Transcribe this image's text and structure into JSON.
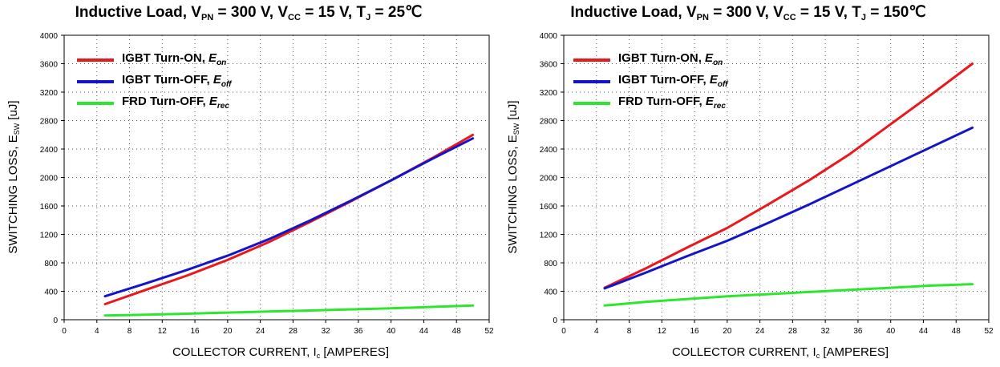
{
  "colors": {
    "eon": "#e8181c",
    "eoff": "#1414c8",
    "erec": "#2ee62e",
    "grid": "#555555"
  },
  "chart_data": [
    {
      "type": "line",
      "title": {
        "prefix": "Inductive Load, V",
        "vpn_sub": "PN",
        "vcc": " = 300 V, V",
        "vcc_sub": "CC",
        "tj": " = 15 V, T",
        "tj_sub": "J",
        "suffix": " = 25℃"
      },
      "ylabel": {
        "main": "SWITCHING LOSS, E",
        "sub": "SW",
        "unit": " [uJ]"
      },
      "xlabel": {
        "main": "COLLECTOR CURRENT, I",
        "sub": "c",
        "unit": " [AMPERES]"
      },
      "xlim": [
        0,
        52
      ],
      "ylim": [
        0,
        4000
      ],
      "xticks": [
        "0",
        "4",
        "8",
        "12",
        "16",
        "20",
        "24",
        "28",
        "32",
        "36",
        "40",
        "44",
        "48",
        "52"
      ],
      "yticks": [
        "0",
        "400",
        "800",
        "1200",
        "1600",
        "2000",
        "2400",
        "2800",
        "3200",
        "3600",
        "4000"
      ],
      "grid": true,
      "legend_position": "top-left",
      "legend": [
        {
          "text": "IGBT Turn-ON, ",
          "sym": "E",
          "sub": "on",
          "color_key": "eon"
        },
        {
          "text": "IGBT Turn-OFF, ",
          "sym": "E",
          "sub": "off",
          "color_key": "eoff"
        },
        {
          "text": "FRD Turn-OFF, ",
          "sym": "E",
          "sub": "rec",
          "color_key": "erec"
        }
      ],
      "series": [
        {
          "key": "eon",
          "x": [
            5,
            10,
            15,
            20,
            25,
            30,
            35,
            40,
            45,
            50
          ],
          "y": [
            220,
            420,
            620,
            840,
            1090,
            1370,
            1660,
            1960,
            2270,
            2600
          ]
        },
        {
          "key": "eoff",
          "x": [
            5,
            10,
            15,
            20,
            25,
            30,
            35,
            40,
            45,
            50
          ],
          "y": [
            330,
            510,
            700,
            900,
            1130,
            1390,
            1670,
            1960,
            2260,
            2550
          ]
        },
        {
          "key": "erec",
          "x": [
            5,
            10,
            15,
            20,
            25,
            30,
            35,
            40,
            45,
            50
          ],
          "y": [
            60,
            70,
            85,
            100,
            115,
            130,
            145,
            160,
            180,
            200
          ]
        }
      ]
    },
    {
      "type": "line",
      "title": {
        "prefix": "Inductive Load, V",
        "vpn_sub": "PN",
        "vcc": " = 300 V, V",
        "vcc_sub": "CC",
        "tj": " = 15 V, T",
        "tj_sub": "J",
        "suffix": " = 150℃"
      },
      "ylabel": {
        "main": "SWITCHING LOSS, E",
        "sub": "SW",
        "unit": " [uJ]"
      },
      "xlabel": {
        "main": "COLLECTOR CURRENT, I",
        "sub": "c",
        "unit": " [AMPERES]"
      },
      "xlim": [
        0,
        52
      ],
      "ylim": [
        0,
        4000
      ],
      "xticks": [
        "0",
        "4",
        "8",
        "12",
        "16",
        "20",
        "24",
        "28",
        "32",
        "36",
        "40",
        "44",
        "48",
        "52"
      ],
      "yticks": [
        "0",
        "400",
        "800",
        "1200",
        "1600",
        "2000",
        "2400",
        "2800",
        "3200",
        "3600",
        "4000"
      ],
      "grid": true,
      "legend_position": "top-left",
      "legend": [
        {
          "text": "IGBT Turn-ON, ",
          "sym": "E",
          "sub": "on",
          "color_key": "eon"
        },
        {
          "text": "IGBT Turn-OFF, ",
          "sym": "E",
          "sub": "off",
          "color_key": "eoff"
        },
        {
          "text": "FRD Turn-OFF, ",
          "sym": "E",
          "sub": "rec",
          "color_key": "erec"
        }
      ],
      "series": [
        {
          "key": "eon",
          "x": [
            5,
            10,
            15,
            20,
            25,
            30,
            35,
            40,
            45,
            50
          ],
          "y": [
            450,
            720,
            1010,
            1290,
            1620,
            1960,
            2330,
            2750,
            3170,
            3600
          ]
        },
        {
          "key": "eoff",
          "x": [
            5,
            10,
            15,
            20,
            25,
            30,
            35,
            40,
            45,
            50
          ],
          "y": [
            440,
            660,
            890,
            1110,
            1360,
            1620,
            1890,
            2160,
            2430,
            2700
          ]
        },
        {
          "key": "erec",
          "x": [
            5,
            10,
            15,
            20,
            25,
            30,
            35,
            40,
            45,
            50
          ],
          "y": [
            200,
            250,
            290,
            330,
            360,
            390,
            420,
            450,
            480,
            500
          ]
        }
      ]
    }
  ]
}
